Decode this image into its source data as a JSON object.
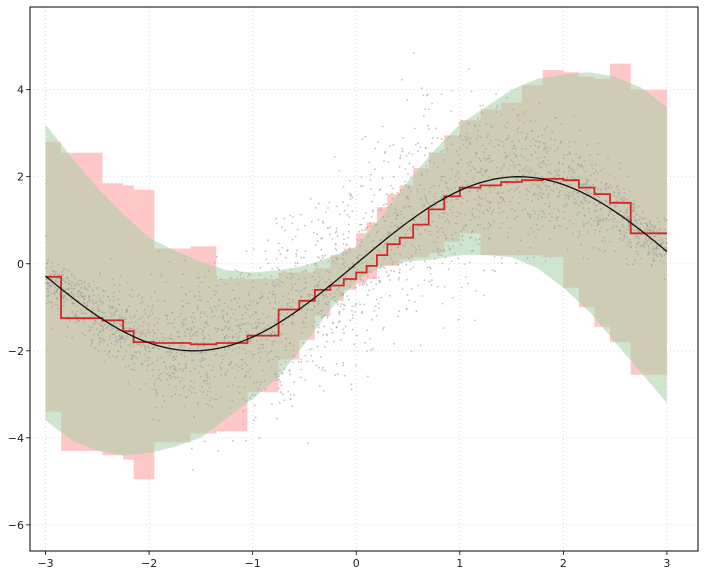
{
  "chart_data": {
    "type": "line",
    "title": "",
    "xlabel": "",
    "ylabel": "",
    "xlim": [
      -3.15,
      3.3
    ],
    "ylim": [
      -6.6,
      5.9
    ],
    "xticks": [
      -3,
      -2,
      -1,
      0,
      1,
      2,
      3
    ],
    "xtick_labels": [
      "−3",
      "−2",
      "−1",
      "0",
      "1",
      "2",
      "3"
    ],
    "yticks": [
      -6,
      -4,
      -2,
      0,
      2,
      4
    ],
    "ytick_labels": [
      "−6",
      "−4",
      "−2",
      "0",
      "2",
      "4"
    ],
    "grid": true,
    "grid_style": "dotted",
    "colors": {
      "true_curve": "#111111",
      "step_estimate": "#d62728",
      "true_band": "#a8d0a8",
      "estimated_band": "#ff9a9a",
      "scatter": "#9a9a9a",
      "grid": "#cfcfcf",
      "frame": "#000000"
    },
    "series": [
      {
        "kind": "line",
        "role": "true-curve",
        "x": [
          -3.0,
          -2.75,
          -2.5,
          -2.25,
          -2.0,
          -1.75,
          -1.5,
          -1.25,
          -1.0,
          -0.75,
          -0.5,
          -0.25,
          0.0,
          0.25,
          0.5,
          0.75,
          1.0,
          1.25,
          1.5,
          1.75,
          2.0,
          2.25,
          2.5,
          2.75,
          3.0
        ],
        "y": [
          -0.28,
          -0.76,
          -1.2,
          -1.56,
          -1.82,
          -1.97,
          -2.0,
          -1.9,
          -1.68,
          -1.36,
          -0.96,
          -0.49,
          0.0,
          0.49,
          0.96,
          1.36,
          1.68,
          1.9,
          2.0,
          1.97,
          1.82,
          1.56,
          1.2,
          0.76,
          0.28
        ]
      },
      {
        "kind": "step",
        "role": "step-estimate",
        "x": [
          -3.0,
          -2.85,
          -2.45,
          -2.25,
          -2.15,
          -1.95,
          -1.6,
          -1.35,
          -1.05,
          -0.75,
          -0.55,
          -0.4,
          -0.25,
          -0.12,
          0.0,
          0.1,
          0.2,
          0.3,
          0.42,
          0.55,
          0.7,
          0.85,
          1.0,
          1.2,
          1.4,
          1.6,
          1.8,
          2.0,
          2.15,
          2.3,
          2.45,
          2.65,
          3.0
        ],
        "y": [
          -0.3,
          -1.25,
          -1.3,
          -1.55,
          -1.8,
          -1.82,
          -1.85,
          -1.82,
          -1.65,
          -1.05,
          -0.85,
          -0.6,
          -0.5,
          -0.35,
          -0.2,
          -0.05,
          0.2,
          0.45,
          0.6,
          0.9,
          1.25,
          1.55,
          1.75,
          1.8,
          1.88,
          1.92,
          1.95,
          1.92,
          1.75,
          1.6,
          1.4,
          0.7,
          0.7
        ]
      },
      {
        "kind": "band",
        "role": "true-band",
        "x": [
          -3.0,
          -2.75,
          -2.5,
          -2.25,
          -2.0,
          -1.75,
          -1.5,
          -1.25,
          -1.0,
          -0.75,
          -0.5,
          -0.25,
          0.0,
          0.25,
          0.5,
          0.75,
          1.0,
          1.25,
          1.5,
          1.75,
          2.0,
          2.25,
          2.5,
          2.75,
          3.0
        ],
        "lower": [
          -3.6,
          -4.05,
          -4.3,
          -4.4,
          -4.35,
          -4.2,
          -4.0,
          -3.55,
          -3.1,
          -2.6,
          -1.85,
          -1.05,
          -0.4,
          -0.05,
          0.05,
          0.1,
          0.2,
          0.2,
          0.15,
          -0.1,
          -0.55,
          -1.1,
          -1.8,
          -2.5,
          -3.2
        ],
        "upper": [
          3.2,
          2.45,
          1.75,
          1.15,
          0.6,
          0.3,
          0.05,
          -0.15,
          -0.2,
          -0.15,
          -0.05,
          0.15,
          0.4,
          1.1,
          1.9,
          2.6,
          3.2,
          3.6,
          4.0,
          4.25,
          4.35,
          4.4,
          4.3,
          4.05,
          3.6
        ]
      },
      {
        "kind": "band",
        "role": "estimated-band",
        "x": [
          -3.0,
          -2.85,
          -2.45,
          -2.25,
          -2.15,
          -1.95,
          -1.6,
          -1.35,
          -1.05,
          -0.75,
          -0.55,
          -0.4,
          -0.25,
          -0.12,
          0.0,
          0.1,
          0.2,
          0.3,
          0.42,
          0.55,
          0.7,
          0.85,
          1.0,
          1.2,
          1.4,
          1.6,
          1.8,
          2.0,
          2.15,
          2.3,
          2.45,
          2.65,
          3.0
        ],
        "lower": [
          -3.4,
          -4.3,
          -4.4,
          -4.5,
          -4.95,
          -4.1,
          -3.9,
          -3.85,
          -2.95,
          -2.2,
          -1.75,
          -1.2,
          -0.85,
          -0.6,
          -0.45,
          -0.35,
          -0.05,
          -0.05,
          0.1,
          0.15,
          0.25,
          0.5,
          0.7,
          0.2,
          0.2,
          0.2,
          0.15,
          -0.55,
          -1.0,
          -1.45,
          -1.8,
          -2.55,
          -2.55
        ],
        "upper": [
          2.8,
          2.55,
          1.85,
          1.8,
          1.7,
          0.35,
          0.4,
          -0.35,
          -0.35,
          -0.2,
          -0.2,
          -0.1,
          0.2,
          0.35,
          0.7,
          0.95,
          1.3,
          1.6,
          1.8,
          2.2,
          2.55,
          2.95,
          3.3,
          3.55,
          3.7,
          4.1,
          4.45,
          4.4,
          4.3,
          4.25,
          4.6,
          4.0,
          4.0
        ]
      }
    ],
    "scatter": {
      "count": 3000,
      "x_range": [
        -3,
        3
      ],
      "curve": "2*sin(x)",
      "noise_sd": 1.1
    }
  }
}
